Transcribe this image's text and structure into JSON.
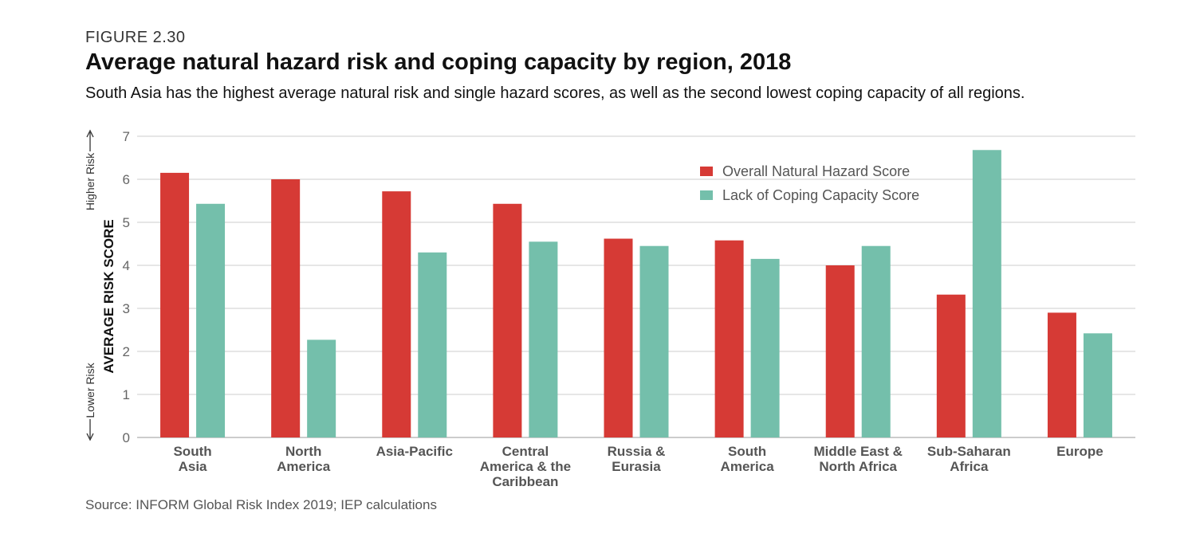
{
  "header": {
    "figure_label": "FIGURE 2.30",
    "title": "Average natural hazard risk and coping capacity by region, 2018",
    "subtitle": "South Asia has the highest average natural risk and single hazard scores, as well as the second lowest coping capacity of all regions."
  },
  "source": "Source: INFORM Global Risk Index 2019; IEP calculations",
  "colors": {
    "hazard": "#d63a35",
    "coping": "#74bfab",
    "grid": "#cccccc"
  },
  "chart_data": {
    "type": "bar",
    "title": "Average natural hazard risk and coping capacity by region, 2018",
    "ylabel": "AVERAGE RISK SCORE",
    "ylabel_high": "Higher Risk",
    "ylabel_low": "Lower Risk",
    "ylim": [
      0,
      7
    ],
    "yticks": [
      0,
      1,
      2,
      3,
      4,
      5,
      6,
      7
    ],
    "grid": true,
    "legend_position": "top-right",
    "categories": [
      [
        "South",
        "Asia"
      ],
      [
        "North",
        "America"
      ],
      [
        "Asia-Pacific"
      ],
      [
        "Central",
        "America & the",
        "Caribbean"
      ],
      [
        "Russia &",
        "Eurasia"
      ],
      [
        "South",
        "America"
      ],
      [
        "Middle East &",
        "North Africa"
      ],
      [
        "Sub-Saharan",
        "Africa"
      ],
      [
        "Europe"
      ]
    ],
    "series": [
      {
        "name": "Overall Natural Hazard Score",
        "values": [
          6.15,
          6.0,
          5.72,
          5.43,
          4.62,
          4.58,
          4.0,
          3.32,
          2.9
        ]
      },
      {
        "name": "Lack of Coping Capacity Score",
        "values": [
          5.43,
          2.27,
          4.3,
          4.55,
          4.45,
          4.15,
          4.45,
          6.68,
          2.42
        ]
      }
    ]
  }
}
